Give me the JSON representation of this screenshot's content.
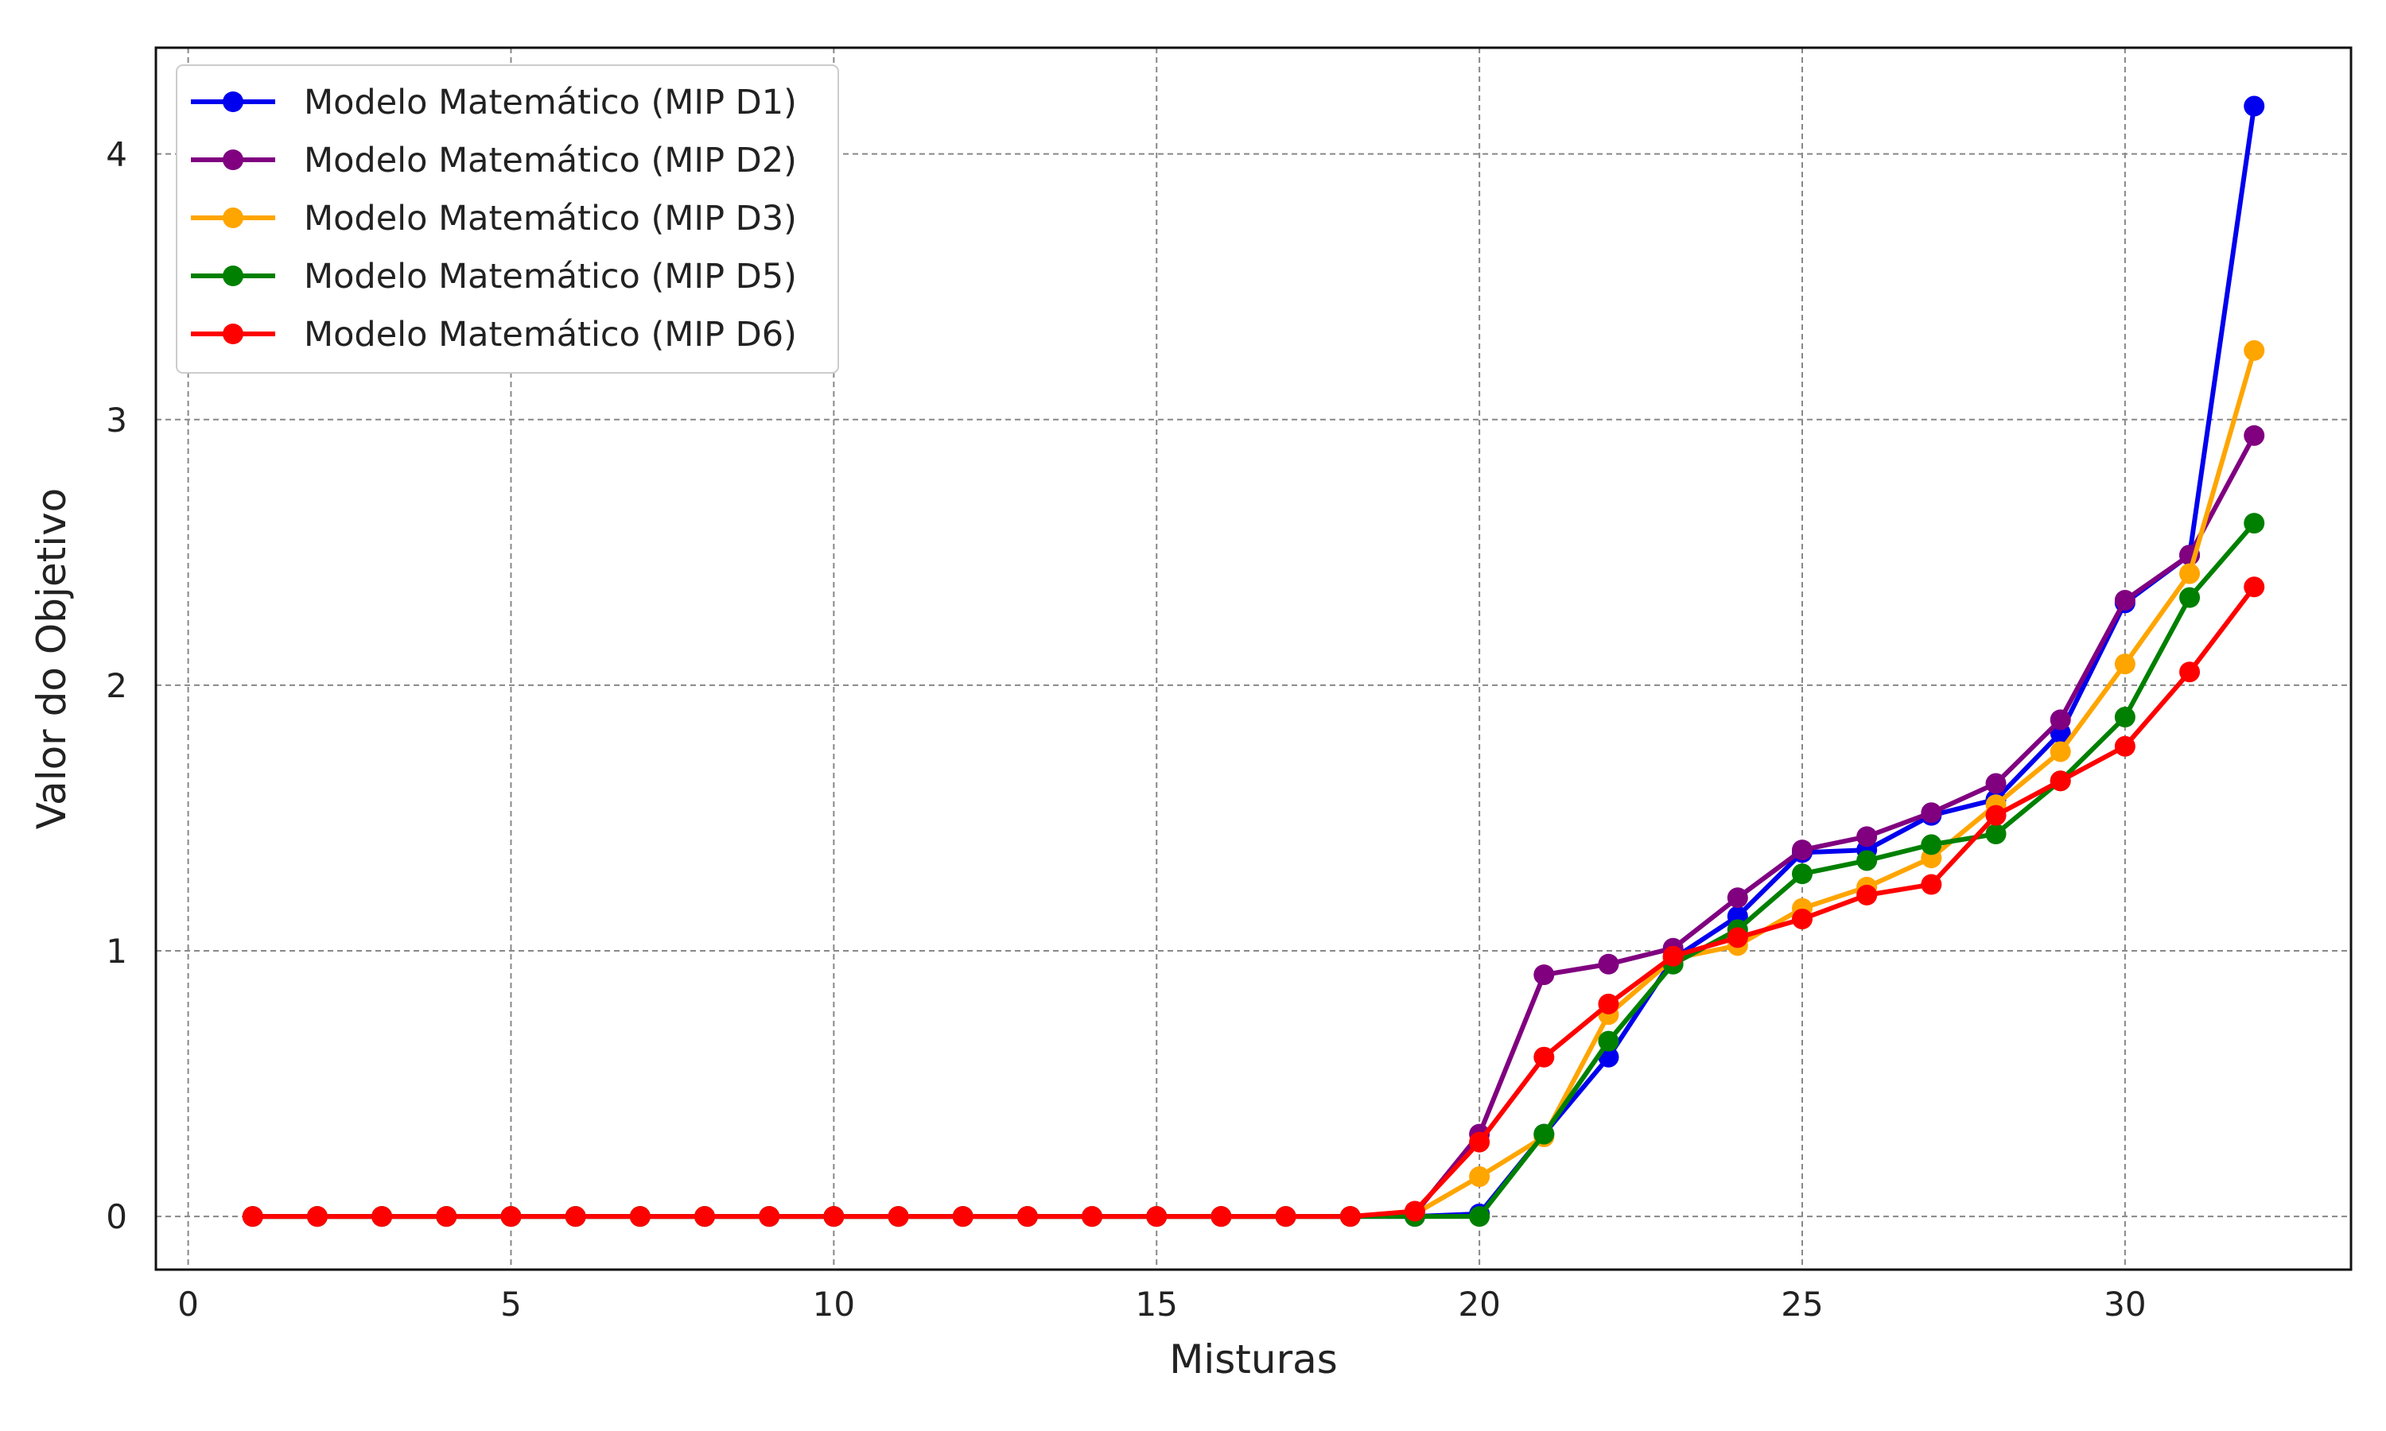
{
  "chart_data": {
    "type": "line",
    "title": "",
    "xlabel": "Misturas",
    "ylabel": "Valor do Objetivo",
    "xlim": [
      -0.5,
      33.5
    ],
    "ylim": [
      -0.2,
      4.4
    ],
    "xticks": [
      0,
      5,
      10,
      15,
      20,
      25,
      30
    ],
    "yticks": [
      0,
      1,
      2,
      3,
      4
    ],
    "grid": true,
    "grid_style": "dashed",
    "legend_position": "top-left",
    "x": [
      1,
      2,
      3,
      4,
      5,
      6,
      7,
      8,
      9,
      10,
      11,
      12,
      13,
      14,
      15,
      16,
      17,
      18,
      19,
      20,
      21,
      22,
      23,
      24,
      25,
      26,
      27,
      28,
      29,
      30,
      31,
      32
    ],
    "series": [
      {
        "name": "Modelo Matemático (MIP D1)",
        "color": "#0000ee",
        "values": [
          0,
          0,
          0,
          0,
          0,
          0,
          0,
          0,
          0,
          0,
          0,
          0,
          0,
          0,
          0,
          0,
          0,
          0,
          0,
          0.01,
          0.31,
          0.6,
          0.97,
          1.13,
          1.37,
          1.38,
          1.51,
          1.57,
          1.82,
          2.31,
          2.49,
          4.18
        ]
      },
      {
        "name": "Modelo Matemático (MIP D2)",
        "color": "#800080",
        "values": [
          0,
          0,
          0,
          0,
          0,
          0,
          0,
          0,
          0,
          0,
          0,
          0,
          0,
          0,
          0,
          0,
          0,
          0,
          0.01,
          0.31,
          0.91,
          0.95,
          1.01,
          1.2,
          1.38,
          1.43,
          1.52,
          1.63,
          1.87,
          2.32,
          2.49,
          2.94
        ]
      },
      {
        "name": "Modelo Matemático (MIP D3)",
        "color": "#ffa500",
        "values": [
          0,
          0,
          0,
          0,
          0,
          0,
          0,
          0,
          0,
          0,
          0,
          0,
          0,
          0,
          0,
          0,
          0,
          0,
          0.01,
          0.15,
          0.3,
          0.76,
          0.97,
          1.02,
          1.16,
          1.24,
          1.35,
          1.55,
          1.75,
          2.08,
          2.42,
          3.26
        ]
      },
      {
        "name": "Modelo Matemático (MIP D5)",
        "color": "#008000",
        "values": [
          0,
          0,
          0,
          0,
          0,
          0,
          0,
          0,
          0,
          0,
          0,
          0,
          0,
          0,
          0,
          0,
          0,
          0,
          0,
          0,
          0.31,
          0.66,
          0.95,
          1.08,
          1.29,
          1.34,
          1.4,
          1.44,
          1.64,
          1.88,
          2.33,
          2.61
        ]
      },
      {
        "name": "Modelo Matemático (MIP D6)",
        "color": "#ff0000",
        "values": [
          0,
          0,
          0,
          0,
          0,
          0,
          0,
          0,
          0,
          0,
          0,
          0,
          0,
          0,
          0,
          0,
          0,
          0,
          0.02,
          0.28,
          0.6,
          0.8,
          0.98,
          1.05,
          1.12,
          1.21,
          1.25,
          1.51,
          1.64,
          1.77,
          2.05,
          2.37
        ]
      }
    ]
  }
}
